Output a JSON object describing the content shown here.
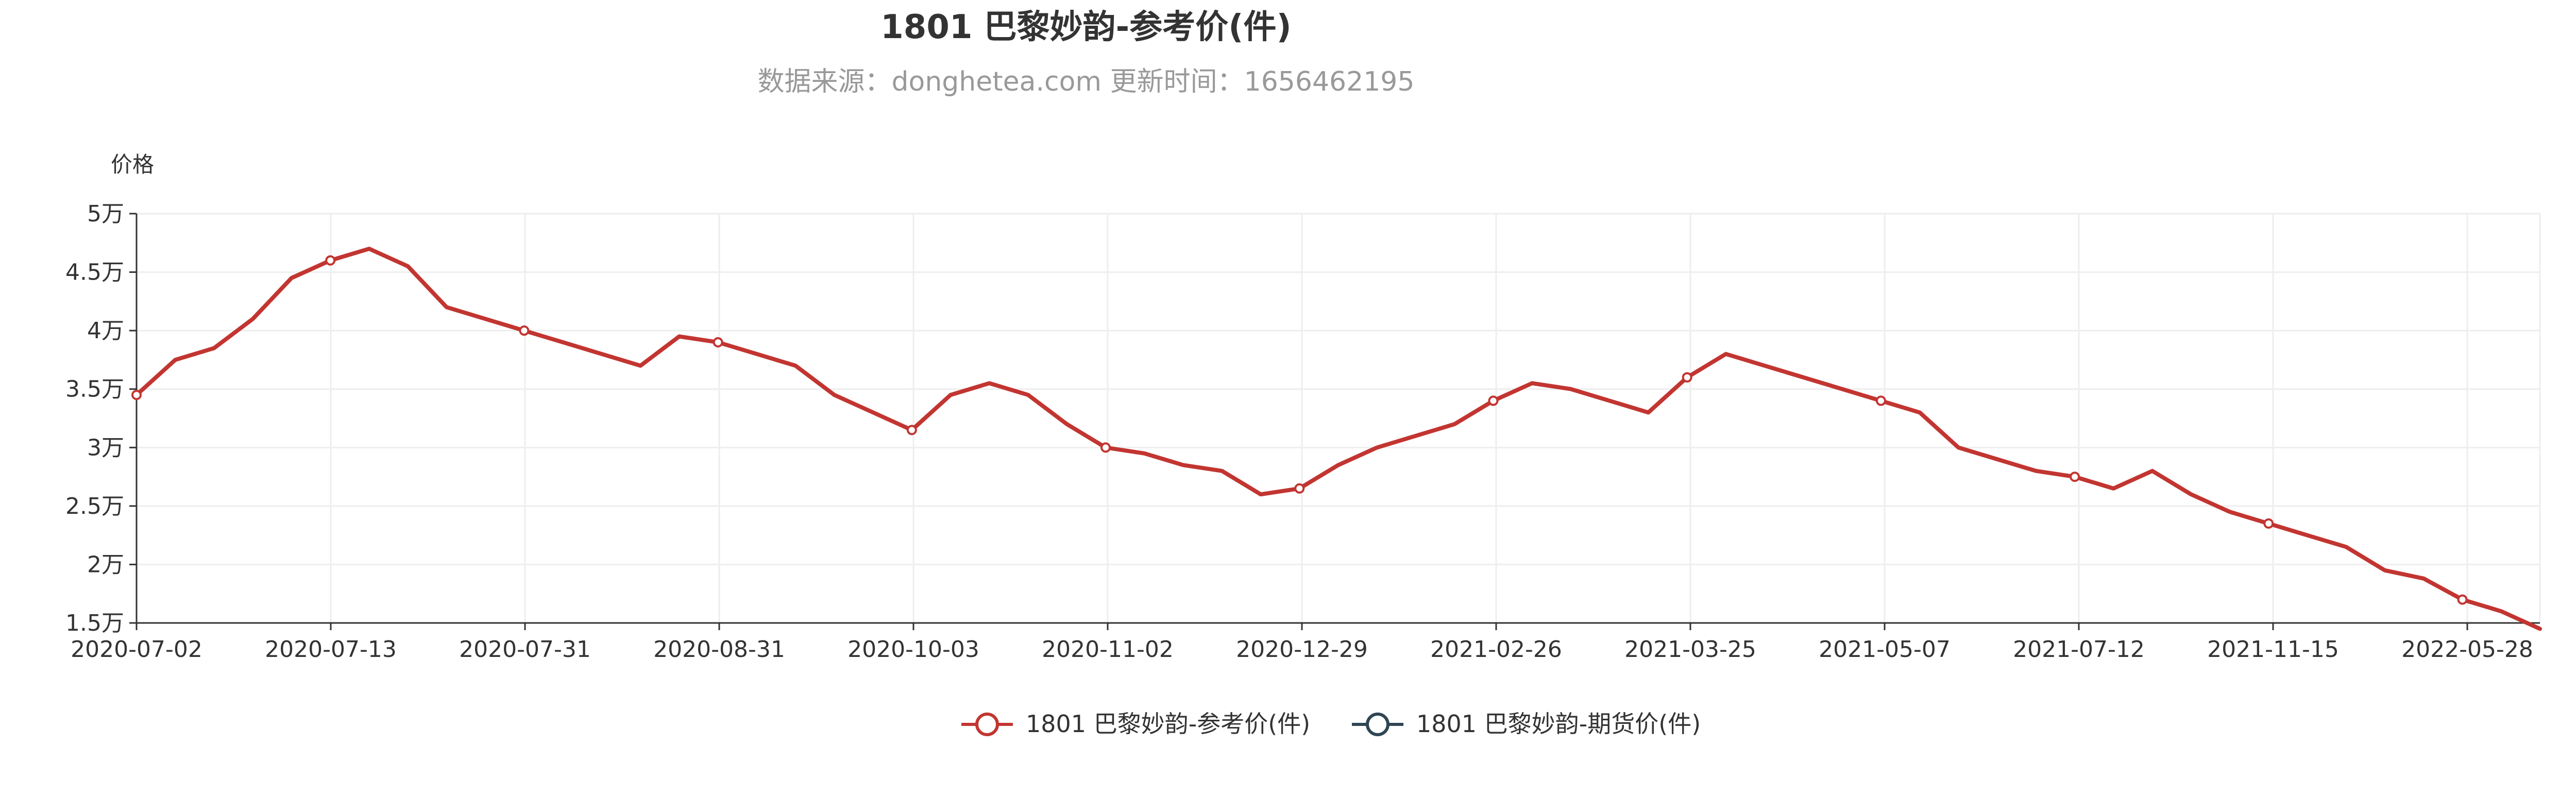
{
  "chart_data": {
    "type": "line",
    "title": "1801 巴黎妙韵-参考价(件)",
    "subtitle": "数据来源：donghetea.com 更新时间：1656462195",
    "ylabel": "价格",
    "xlabel": "",
    "ylim": [
      15000,
      50000
    ],
    "yticks": [
      "1.5万",
      "2万",
      "2.5万",
      "3万",
      "3.5万",
      "4万",
      "4.5万",
      "5万"
    ],
    "ytick_values": [
      15000,
      20000,
      25000,
      30000,
      35000,
      40000,
      45000,
      50000
    ],
    "xtick_labels": [
      "2020-07-02",
      "2020-07-13",
      "2020-07-31",
      "2020-08-31",
      "2020-10-03",
      "2020-11-02",
      "2020-12-29",
      "2021-02-26",
      "2021-03-25",
      "2021-05-07",
      "2021-07-12",
      "2021-11-15",
      "2022-05-28"
    ],
    "grid": true,
    "legend_placement": "bottom-center",
    "colors": {
      "series1": "#c23531",
      "series2": "#2f4554"
    },
    "series": [
      {
        "name": "1801 巴黎妙韵-参考价(件)",
        "values": [
          34500,
          37500,
          38500,
          41000,
          44500,
          46000,
          47000,
          45500,
          42000,
          41000,
          40000,
          39000,
          38000,
          37000,
          39500,
          39000,
          38000,
          37000,
          34500,
          33000,
          31500,
          34500,
          35500,
          34500,
          32000,
          30000,
          29500,
          28500,
          28000,
          26000,
          26500,
          28500,
          30000,
          31000,
          32000,
          34000,
          35500,
          35000,
          34000,
          33000,
          36000,
          38000,
          37000,
          36000,
          35000,
          34000,
          33000,
          30000,
          29000,
          28000,
          27500,
          26500,
          28000,
          26000,
          24500,
          23500,
          22500,
          21500,
          19500,
          18800,
          17000,
          16000,
          14500
        ]
      },
      {
        "name": "1801 巴黎妙韵-期货价(件)",
        "values": []
      }
    ]
  }
}
